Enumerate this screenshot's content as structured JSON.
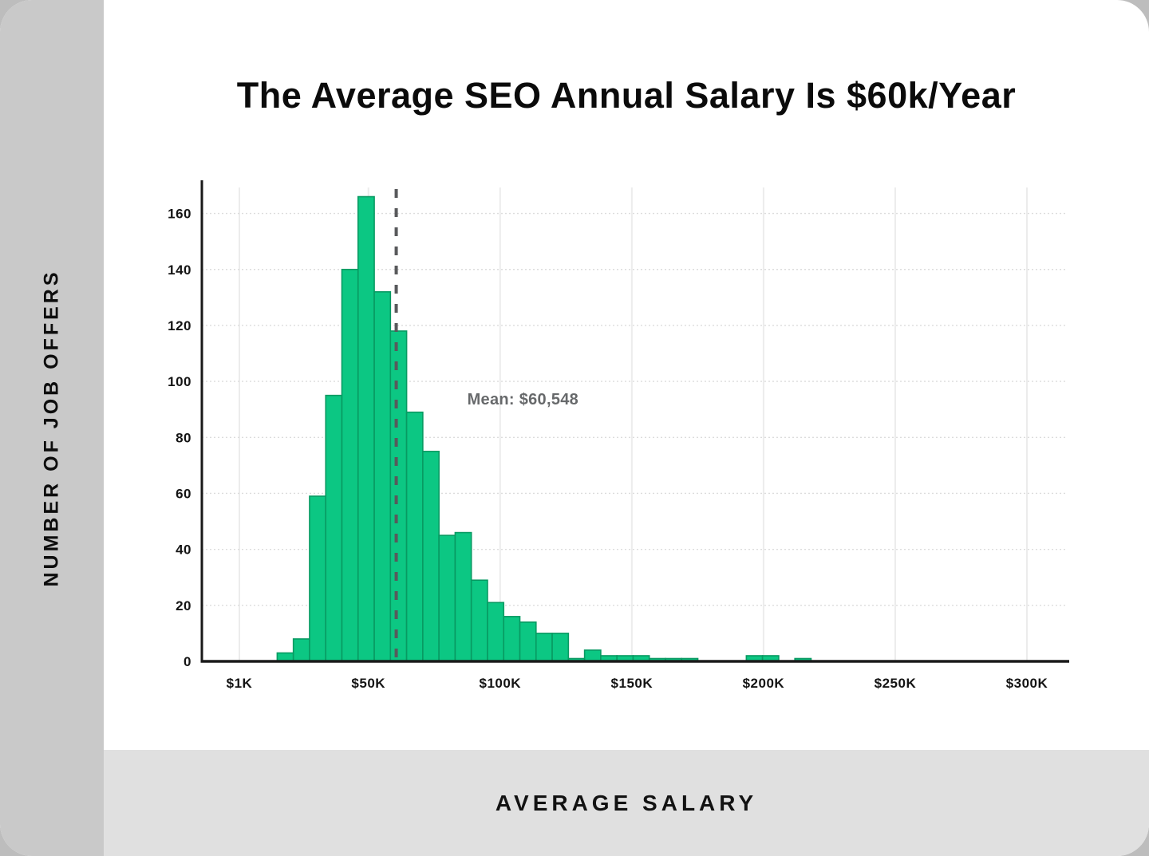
{
  "page": {
    "outer_background": "#bdbdbd",
    "card_background": "#ffffff",
    "sidebar_background": "#c9c9c9",
    "bottom_bar_background": "#e0e0e0"
  },
  "title": "The Average SEO Annual Salary Is $60k/Year",
  "sidebar": {
    "label": "NUMBER OF JOB OFFERS"
  },
  "bottom_bar": {
    "label": "AVERAGE SALARY"
  },
  "chart_data": {
    "type": "bar",
    "subtype": "histogram",
    "title": "The Average SEO Annual Salary Is $60k/Year",
    "xlabel": "AVERAGE SALARY",
    "ylabel": "NUMBER OF JOB OFFERS",
    "bin_start": 15360,
    "bin_width": 6142,
    "counts": [
      3,
      8,
      59,
      95,
      140,
      166,
      132,
      118,
      89,
      75,
      45,
      46,
      29,
      21,
      16,
      14,
      10,
      10,
      1,
      4,
      2,
      2,
      2,
      1,
      1,
      1,
      0,
      0,
      0,
      2,
      2,
      0,
      1
    ],
    "x_ticks": [
      {
        "value": 1000,
        "label": "$1K"
      },
      {
        "value": 50000,
        "label": "$50K"
      },
      {
        "value": 100000,
        "label": "$100K"
      },
      {
        "value": 150000,
        "label": "$150K"
      },
      {
        "value": 200000,
        "label": "$200K"
      },
      {
        "value": 250000,
        "label": "$250K"
      },
      {
        "value": 300000,
        "label": "$300K"
      }
    ],
    "y_ticks": [
      0,
      20,
      40,
      60,
      80,
      100,
      120,
      140,
      160
    ],
    "xlim": [
      -13238,
      315147
    ],
    "ylim": [
      0,
      169
    ],
    "mean": {
      "value": 60548,
      "label": "Mean: $60,548"
    },
    "grid": true,
    "legend": false,
    "colors": {
      "bar": "#0cc783",
      "bar_border": "#089a62",
      "mean_line": "#58595b",
      "mean_label": "#67696b",
      "grid_horizontal": "#dcdcdc",
      "grid_vertical": "#ececec",
      "axis": "#1a1a1a"
    }
  }
}
